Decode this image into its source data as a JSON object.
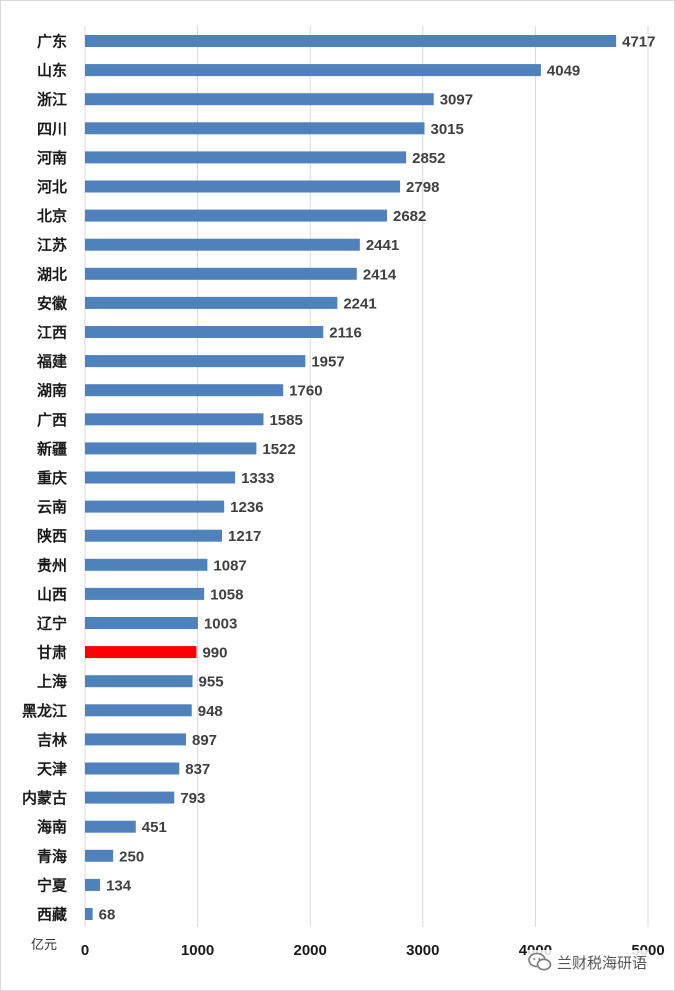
{
  "chart_data": {
    "type": "bar",
    "orientation": "horizontal",
    "categories": [
      "广东",
      "山东",
      "浙江",
      "四川",
      "河南",
      "河北",
      "北京",
      "江苏",
      "湖北",
      "安徽",
      "江西",
      "福建",
      "湖南",
      "广西",
      "新疆",
      "重庆",
      "云南",
      "陕西",
      "贵州",
      "山西",
      "辽宁",
      "甘肃",
      "上海",
      "黑龙江",
      "吉林",
      "天津",
      "内蒙古",
      "海南",
      "青海",
      "宁夏",
      "西藏"
    ],
    "values": [
      4717,
      4049,
      3097,
      3015,
      2852,
      2798,
      2682,
      2441,
      2414,
      2241,
      2116,
      1957,
      1760,
      1585,
      1522,
      1333,
      1236,
      1217,
      1087,
      1058,
      1003,
      990,
      955,
      948,
      897,
      837,
      793,
      451,
      250,
      134,
      68
    ],
    "highlight_category": "甘肃",
    "colors": {
      "bar": "#4f81bd",
      "highlight": "#ff0000",
      "value_label": "#404040",
      "highlight_label": "#ff0000",
      "grid": "#d9d9d9"
    },
    "unit_label": "亿元",
    "xlim": [
      0,
      5000
    ],
    "xticks": [
      0,
      1000,
      2000,
      3000,
      4000,
      5000
    ],
    "grid": true,
    "legend": "none"
  },
  "watermark": {
    "text": "兰财税海研语",
    "icon": "wechat-icon"
  }
}
